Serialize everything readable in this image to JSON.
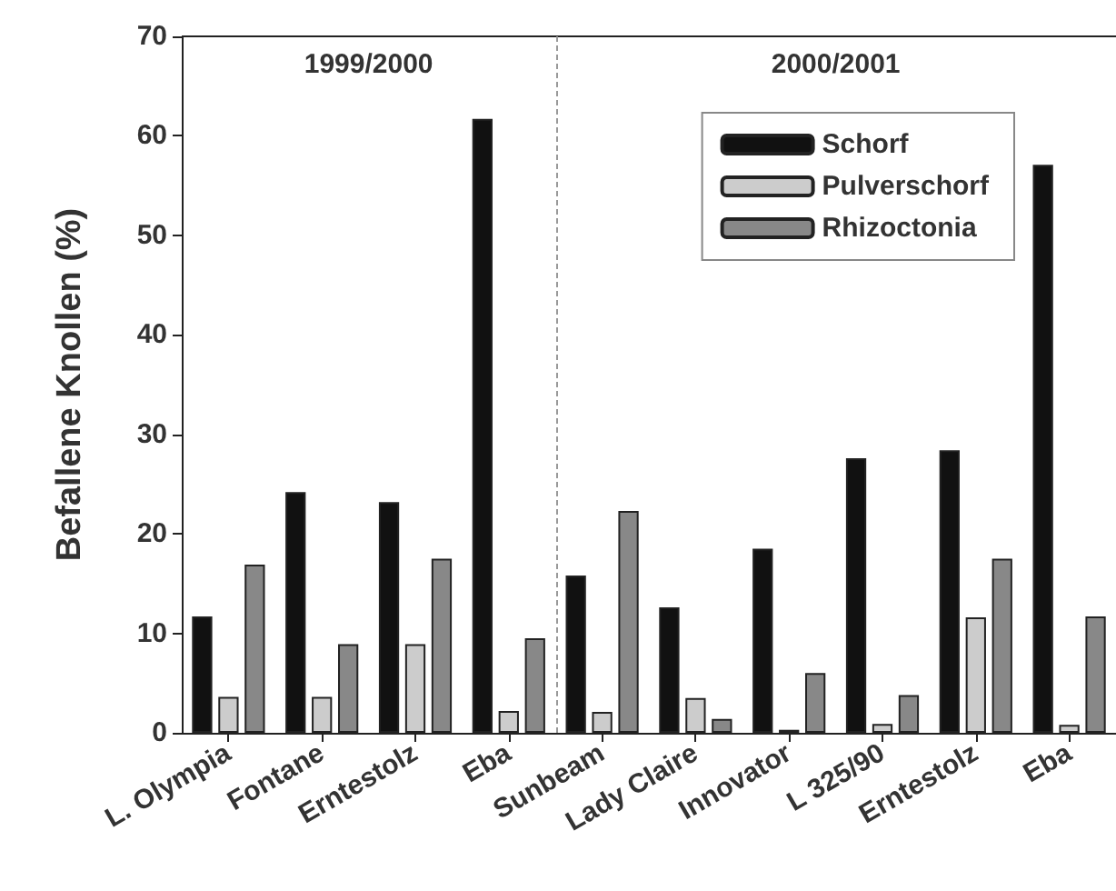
{
  "chart_data": {
    "type": "bar",
    "ylabel": "Befallene Knollen (%)",
    "categories": [
      "L. Olympia",
      "Fontane",
      "Erntestolz",
      "Eba",
      "Sunbeam",
      "Lady Claire",
      "Innovator",
      "L 325/90",
      "Erntestolz",
      "Eba"
    ],
    "series": [
      {
        "name": "Schorf",
        "color": "#111111",
        "values": [
          11.7,
          24.2,
          23.2,
          61.7,
          15.8,
          12.6,
          18.5,
          27.6,
          28.4,
          57.1
        ]
      },
      {
        "name": "Pulverschorf",
        "color": "#cccccc",
        "values": [
          3.6,
          3.6,
          8.9,
          2.2,
          2.1,
          3.5,
          0.3,
          0.9,
          11.6,
          0.8
        ]
      },
      {
        "name": "Rhizoctonia",
        "color": "#888888",
        "values": [
          16.9,
          8.9,
          17.5,
          9.5,
          22.3,
          1.4,
          6.0,
          3.8,
          17.5,
          11.7
        ]
      }
    ],
    "ylim": [
      0,
      70
    ],
    "yticks": [
      0,
      10,
      20,
      30,
      40,
      50,
      60,
      70
    ],
    "annotations": [
      "1999/2000",
      "2000/2001"
    ],
    "legend": "top right",
    "grid": false
  }
}
